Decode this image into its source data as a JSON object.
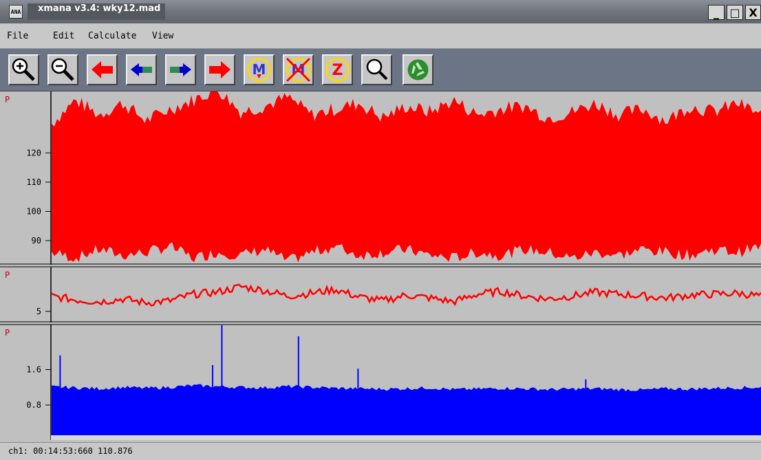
{
  "window": {
    "title": "xmana v3.4: wky12.mad",
    "icon_text": "ANA"
  },
  "window_buttons": {
    "minimize": "_",
    "maximize": "□",
    "close": "X"
  },
  "menu": {
    "items": [
      "File",
      "Edit",
      "Calculate",
      "View"
    ]
  },
  "toolbar": {
    "buttons": [
      "zoom-in-icon",
      "zoom-out-icon",
      "scroll-far-left-icon",
      "scroll-left-icon",
      "scroll-right-icon",
      "scroll-far-right-icon",
      "mark-icon",
      "delete-mark-icon",
      "zero-icon",
      "search-icon",
      "recycle-icon"
    ]
  },
  "colors": {
    "channel1": "#ff0000",
    "channel2": "#ff0000",
    "channel3": "#0000ff",
    "baseline": "#d8d8d8"
  },
  "chart_data": [
    {
      "type": "line",
      "channel_label": "P",
      "ticks": [
        "120",
        "110",
        "100",
        "90"
      ],
      "tick_values": [
        120,
        110,
        100,
        90
      ],
      "ylim": [
        82,
        141
      ],
      "description_of_trace": "dense red waveform",
      "envelope_upper": [
        130,
        138,
        133,
        137,
        131,
        135,
        138,
        142,
        134,
        136,
        139,
        133,
        135,
        137,
        132,
        136,
        134,
        138,
        133,
        135,
        136,
        132,
        134,
        137,
        133,
        135,
        131,
        136,
        134,
        137,
        133
      ],
      "envelope_lower": [
        86,
        84,
        87,
        85,
        86,
        88,
        84,
        86,
        85,
        87,
        83,
        86,
        88,
        85,
        86,
        87,
        85,
        84,
        86,
        85,
        87,
        86,
        84,
        86,
        85,
        87,
        86,
        85,
        87,
        86,
        88
      ]
    },
    {
      "type": "line",
      "channel_label": "P",
      "ticks": [
        "5"
      ],
      "tick_values": [
        5
      ],
      "ylim": [
        3.9,
        9.6
      ],
      "values": [
        6.6,
        6.2,
        6.0,
        6.3,
        5.9,
        6.1,
        6.8,
        7.0,
        7.6,
        7.2,
        6.6,
        6.9,
        7.3,
        6.5,
        6.1,
        6.7,
        6.4,
        6.0,
        6.8,
        7.1,
        6.6,
        6.3,
        6.6,
        7.0,
        6.8,
        6.6,
        6.4,
        6.7,
        6.8,
        6.9,
        6.6
      ]
    },
    {
      "type": "area",
      "channel_label": "P",
      "ticks": [
        "1.6",
        "0.8"
      ],
      "tick_values": [
        1.6,
        0.8
      ],
      "ylim": [
        0.04,
        2.6
      ],
      "fill_level": [
        1.21,
        1.19,
        1.17,
        1.2,
        1.18,
        1.2,
        1.24,
        1.22,
        1.2,
        1.19,
        1.22,
        1.2,
        1.18,
        1.17,
        1.16,
        1.17,
        1.19,
        1.15,
        1.16,
        1.18,
        1.17,
        1.15,
        1.16,
        1.17,
        1.15,
        1.14,
        1.17,
        1.16,
        1.18,
        1.19,
        1.2
      ],
      "spikes": [
        {
          "x": 0.012,
          "y": 1.92
        },
        {
          "x": 0.227,
          "y": 1.7
        },
        {
          "x": 0.24,
          "y": 2.6
        },
        {
          "x": 0.348,
          "y": 2.35
        },
        {
          "x": 0.432,
          "y": 1.62
        },
        {
          "x": 0.753,
          "y": 1.38
        }
      ]
    }
  ],
  "status": {
    "text": "ch1: 00:14:53:660 110.876"
  }
}
